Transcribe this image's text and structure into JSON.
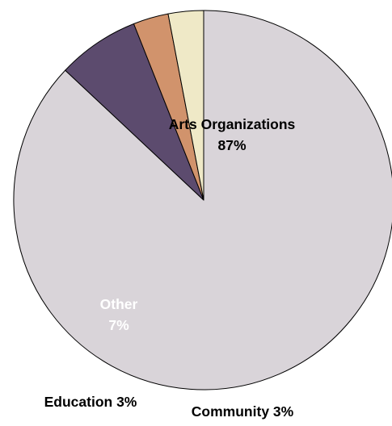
{
  "chart_data": {
    "type": "pie",
    "slices": [
      {
        "label": "Arts Organizations",
        "value": 87,
        "value_text": "87%",
        "color": "#d9d4d9",
        "label_color": "#000000",
        "label_layout": "inside-two-line"
      },
      {
        "label": "Other",
        "value": 7,
        "value_text": "7%",
        "color": "#5c4b6e",
        "label_color": "#ffffff",
        "label_layout": "inside-two-line"
      },
      {
        "label": "Education",
        "value": 3,
        "value_text": "3%",
        "color": "#d1936c",
        "label_color": "#000000",
        "label_layout": "outside-one-line"
      },
      {
        "label": "Community",
        "value": 3,
        "value_text": "3%",
        "color": "#efe9c7",
        "label_color": "#000000",
        "label_layout": "outside-one-line"
      }
    ],
    "start_angle_deg": 0,
    "direction": "clockwise",
    "legend": "none",
    "title": ""
  }
}
